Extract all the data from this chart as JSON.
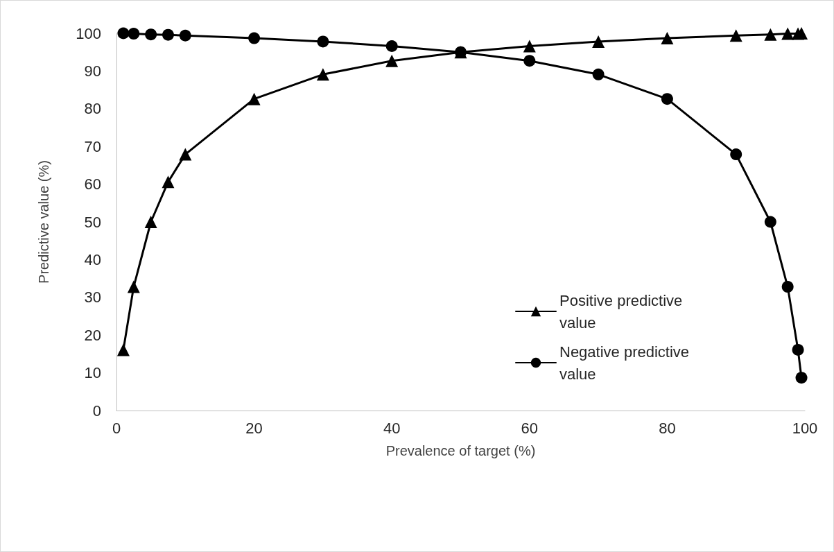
{
  "chart_data": {
    "type": "line",
    "xlabel": "Prevalence of target (%)",
    "ylabel": "Predictive value (%)",
    "xlim": [
      0,
      100
    ],
    "xticks": [
      0,
      20,
      40,
      60,
      80,
      100
    ],
    "ylim": [
      0,
      100
    ],
    "yticks": [
      0,
      10,
      20,
      30,
      40,
      50,
      60,
      70,
      80,
      90,
      100
    ],
    "grid": false,
    "legend": "bottom right",
    "line_style": "solid",
    "series": [
      {
        "name": "Positive predictive value",
        "color": "#000000",
        "marker": "triangle",
        "x": [
          1,
          2.5,
          5,
          7.5,
          10,
          20,
          30,
          40,
          50,
          60,
          70,
          80,
          90,
          95,
          97.5,
          99,
          99.5
        ],
        "values": [
          16.1,
          32.8,
          50,
          60.6,
          67.9,
          82.6,
          89.1,
          92.7,
          95,
          96.6,
          97.8,
          98.7,
          99.4,
          99.7,
          99.9,
          99.9,
          100
        ]
      },
      {
        "name": "Negative predictive value",
        "color": "#000000",
        "marker": "circle",
        "x": [
          1,
          2.5,
          5,
          7.5,
          10,
          20,
          30,
          40,
          50,
          60,
          70,
          80,
          90,
          95,
          97.5,
          99,
          99.5
        ],
        "values": [
          100,
          99.9,
          99.7,
          99.6,
          99.4,
          98.7,
          97.8,
          96.6,
          95,
          92.7,
          89.1,
          82.6,
          67.9,
          50,
          32.8,
          16.1,
          8.7
        ]
      }
    ]
  }
}
